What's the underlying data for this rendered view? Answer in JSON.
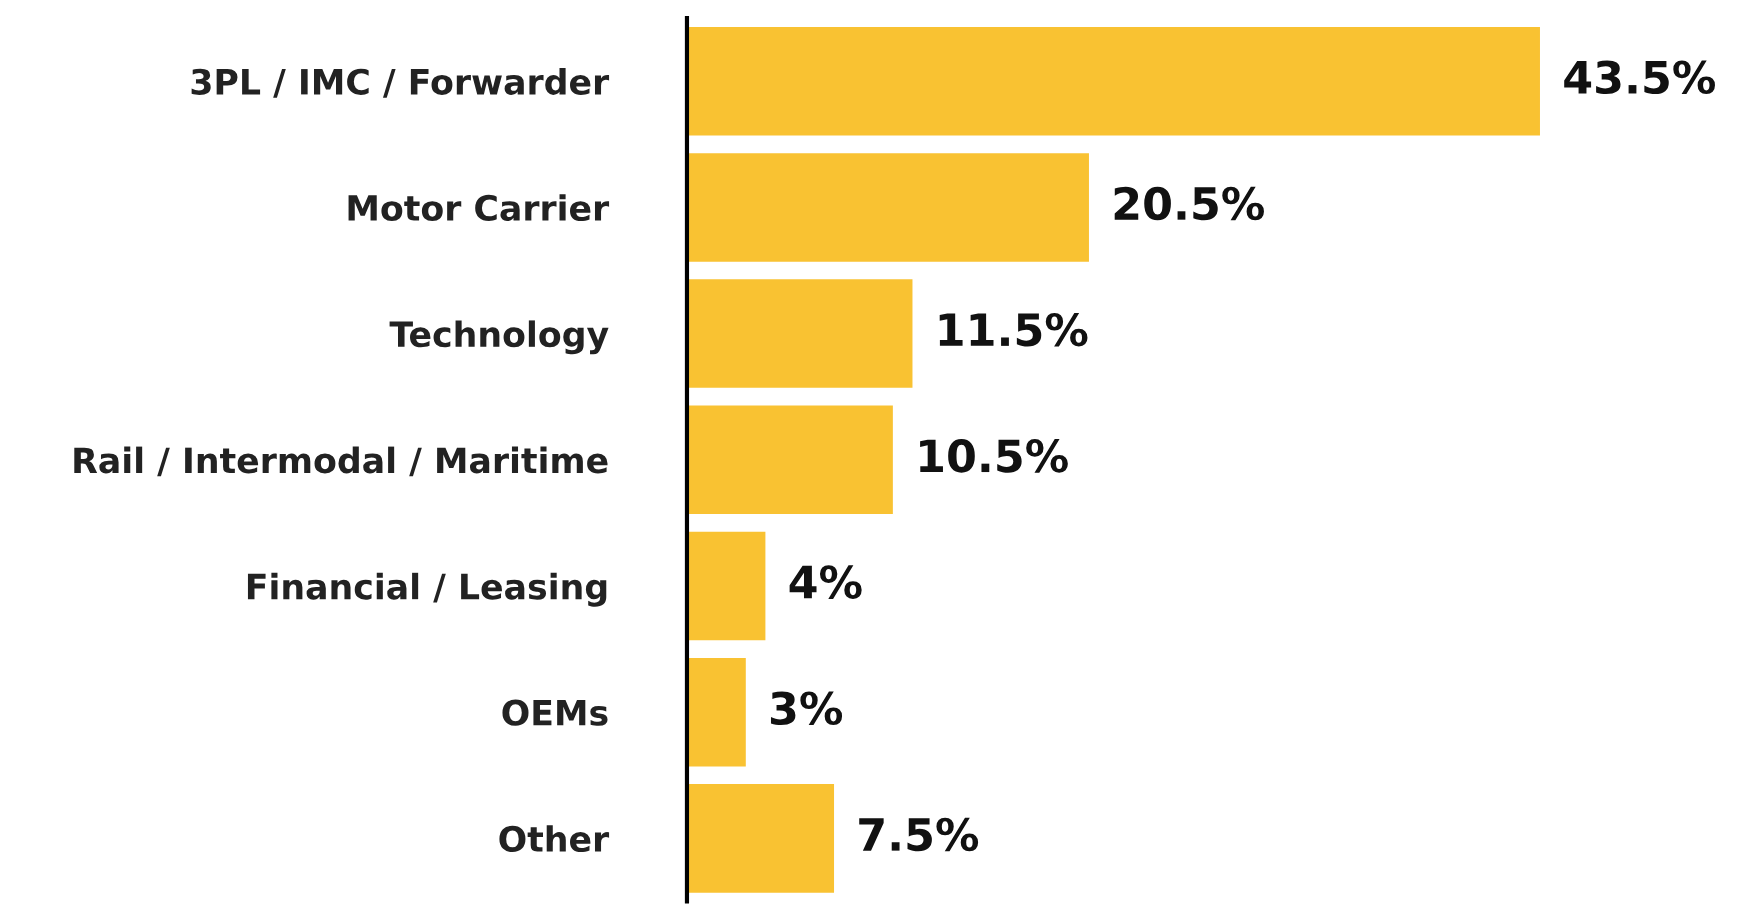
{
  "chart_data": {
    "type": "bar",
    "orientation": "horizontal",
    "categories": [
      "3PL / IMC / Forwarder",
      "Motor Carrier",
      "Technology",
      "Rail / Intermodal / Maritime",
      "Financial / Leasing",
      "OEMs",
      "Other"
    ],
    "values": [
      43.5,
      20.5,
      11.5,
      10.5,
      4,
      3,
      7.5
    ],
    "value_labels": [
      "43.5%",
      "20.5%",
      "11.5%",
      "10.5%",
      "4%",
      "3%",
      "7.5%"
    ],
    "color": "#f9c232",
    "grid": false,
    "legend": false
  }
}
